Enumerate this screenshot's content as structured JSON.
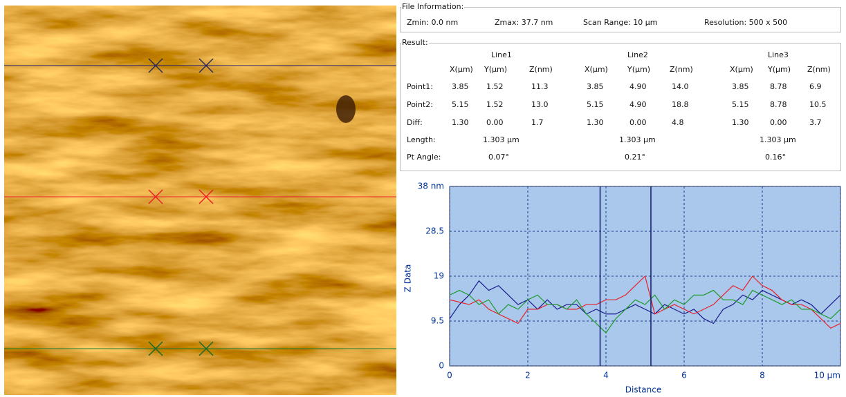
{
  "file_information": {
    "title": "File Information:",
    "zmin": "Zmin: 0.0 nm",
    "zmax": "Zmax: 37.7 nm",
    "scan_range": "Scan Range: 10 µm",
    "resolution": "Resolution: 500 x 500"
  },
  "result": {
    "title": "Result:",
    "lines": [
      "Line1",
      "Line2",
      "Line3"
    ],
    "column_headers": [
      "X(µm)",
      "Y(µm)",
      "Z(nm)"
    ],
    "rows": [
      {
        "label": "Point1:",
        "cells": [
          "3.85",
          "1.52",
          "11.3",
          "3.85",
          "4.90",
          "14.0",
          "3.85",
          "8.78",
          "6.9"
        ]
      },
      {
        "label": "Point2:",
        "cells": [
          "5.15",
          "1.52",
          "13.0",
          "5.15",
          "4.90",
          "18.8",
          "5.15",
          "8.78",
          "10.5"
        ]
      },
      {
        "label": "Diff:",
        "cells": [
          "1.30",
          "0.00",
          "1.7",
          "1.30",
          "0.00",
          "4.8",
          "1.30",
          "0.00",
          "3.7"
        ]
      }
    ],
    "length": {
      "label": "Length:",
      "cells": [
        "1.303 µm",
        "1.303 µm",
        "1.303 µm"
      ]
    },
    "pt_angle": {
      "label": "Pt Angle:",
      "cells": [
        "0.07°",
        "0.21°",
        "0.16°"
      ]
    }
  },
  "chart_data": {
    "type": "line",
    "x_label": "Distance",
    "y_label": "Z Data",
    "xlim": [
      0,
      10
    ],
    "ylim": [
      0,
      38
    ],
    "xticks": [
      0,
      2,
      4,
      6,
      8,
      {
        "value": 10,
        "label": "10 µm"
      }
    ],
    "yticks": [
      0,
      9.5,
      19,
      28.5,
      {
        "value": 38,
        "label": "38 nm"
      }
    ],
    "grid": true,
    "cursors": [
      3.85,
      5.15
    ],
    "x": [
      0,
      0.25,
      0.5,
      0.75,
      1,
      1.25,
      1.5,
      1.75,
      2,
      2.25,
      2.5,
      2.75,
      3,
      3.25,
      3.5,
      3.75,
      4,
      4.25,
      4.5,
      4.75,
      5,
      5.25,
      5.5,
      5.75,
      6,
      6.25,
      6.5,
      6.75,
      7,
      7.25,
      7.5,
      7.75,
      8,
      8.25,
      8.5,
      8.75,
      9,
      9.25,
      9.5,
      9.75,
      10
    ],
    "series": [
      {
        "color": "#1a1a8c",
        "values": [
          10,
          13,
          15,
          18,
          16,
          17,
          15,
          13,
          14,
          12,
          14,
          12,
          13,
          13,
          11,
          12,
          11,
          11,
          12,
          13,
          12,
          11,
          13,
          12,
          11,
          12,
          10,
          9,
          12,
          13,
          15,
          14,
          16,
          15,
          14,
          13,
          14,
          13,
          11,
          13,
          15
        ]
      },
      {
        "color": "#e8202a",
        "values": [
          14,
          13.5,
          13,
          14,
          12,
          11,
          10,
          9,
          12,
          12,
          13,
          13,
          12,
          12,
          13,
          13,
          14,
          14,
          15,
          17,
          19,
          11,
          12,
          13,
          12,
          11,
          12,
          13,
          15,
          17,
          16,
          19,
          17,
          16,
          14,
          13,
          13,
          12,
          10,
          8,
          9
        ]
      },
      {
        "color": "#1a9a2a",
        "values": [
          15,
          16,
          15,
          13,
          14,
          11,
          13,
          12,
          14,
          15,
          13,
          13,
          12,
          14,
          11,
          9,
          7,
          10,
          12,
          14,
          13,
          15,
          12,
          14,
          13,
          15,
          15,
          16,
          14,
          14,
          13,
          16,
          15,
          14,
          13,
          14,
          12,
          12,
          11,
          10,
          12
        ]
      }
    ]
  }
}
